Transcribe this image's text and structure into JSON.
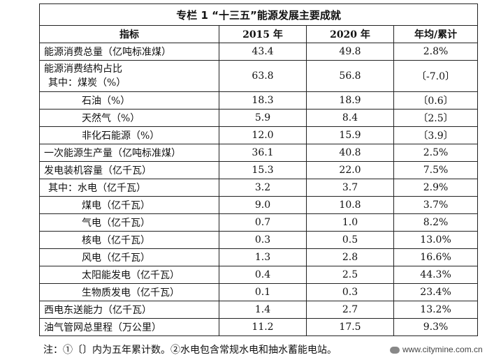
{
  "title": "专栏 1 “十三五”能源发展主要成就",
  "headers": [
    "指标",
    "2015 年",
    "2020 年",
    "年均/累计"
  ],
  "rows": [
    {
      "name": "能源消费总量（亿吨标准煤）",
      "v2015": "43.4",
      "v2020": "49.8",
      "change": "2.8%",
      "indent": 0
    },
    {
      "name": "能源消费结构占比",
      "name2": "其中：煤炭（%）",
      "v2015": "63.8",
      "v2020": "56.8",
      "change": "〔-7.0〕",
      "indent": 0
    },
    {
      "name": "石油（%）",
      "v2015": "18.3",
      "v2020": "18.9",
      "change": "〔0.6〕",
      "indent": 2
    },
    {
      "name": "天然气（%）",
      "v2015": "5.9",
      "v2020": "8.4",
      "change": "〔2.5〕",
      "indent": 2
    },
    {
      "name": "非化石能源（%）",
      "v2015": "12.0",
      "v2020": "15.9",
      "change": "〔3.9〕",
      "indent": 2
    },
    {
      "name": "一次能源生产量（亿吨标准煤）",
      "v2015": "36.1",
      "v2020": "40.8",
      "change": "2.5%",
      "indent": 0
    },
    {
      "name": "发电装机容量（亿千瓦）",
      "v2015": "15.3",
      "v2020": "22.0",
      "change": "7.5%",
      "indent": 0
    },
    {
      "name": "其中：水电（亿千瓦）",
      "v2015": "3.2",
      "v2020": "3.7",
      "change": "2.9%",
      "indent": 1
    },
    {
      "name": "煤电（亿千瓦）",
      "v2015": "9.0",
      "v2020": "10.8",
      "change": "3.7%",
      "indent": 2
    },
    {
      "name": "气电（亿千瓦）",
      "v2015": "0.7",
      "v2020": "1.0",
      "change": "8.2%",
      "indent": 2
    },
    {
      "name": "核电（亿千瓦）",
      "v2015": "0.3",
      "v2020": "0.5",
      "change": "13.0%",
      "indent": 2
    },
    {
      "name": "风电（亿千瓦）",
      "v2015": "1.3",
      "v2020": "2.8",
      "change": "16.6%",
      "indent": 2
    },
    {
      "name": "太阳能发电（亿千瓦）",
      "v2015": "0.4",
      "v2020": "2.5",
      "change": "44.3%",
      "indent": 2
    },
    {
      "name": "生物质发电（亿千瓦）",
      "v2015": "0.1",
      "v2020": "0.3",
      "change": "23.4%",
      "indent": 2
    },
    {
      "name": "西电东送能力（亿千瓦）",
      "v2015": "1.4",
      "v2020": "2.7",
      "change": "13.2%",
      "indent": 0
    },
    {
      "name": "油气管网总里程（万公里）",
      "v2015": "11.2",
      "v2020": "17.5",
      "change": "9.3%",
      "indent": 0
    }
  ],
  "note": "注：①〔〕内为五年累计数。②水电包含常规水电和抽水蓄能电站。",
  "watermark": "www.citymine.com.cn"
}
